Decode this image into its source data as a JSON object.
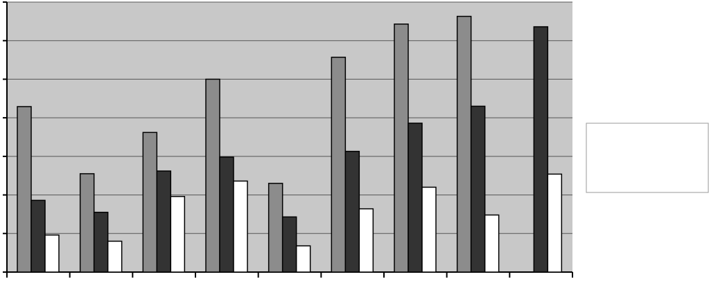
{
  "chart_data": {
    "type": "bar",
    "categories": [
      null,
      null,
      null,
      null,
      null,
      null,
      null,
      null,
      null
    ],
    "series": [
      {
        "color": "#8c8c8c",
        "values": [
          4.29,
          2.55,
          3.62,
          5.0,
          2.3,
          5.57,
          6.43,
          6.63,
          null
        ]
      },
      {
        "color": "#333333",
        "values": [
          1.86,
          1.55,
          2.62,
          2.98,
          1.43,
          3.13,
          3.86,
          4.3,
          6.36
        ]
      },
      {
        "color": "#ffffff",
        "values": [
          0.96,
          0.8,
          1.96,
          2.36,
          0.68,
          1.64,
          2.2,
          1.48,
          2.54
        ]
      }
    ],
    "ylim": [
      0,
      7
    ],
    "yticks": [
      0,
      1,
      2,
      3,
      4,
      5,
      6,
      7
    ],
    "grid": true,
    "background": "#c8c8c8"
  }
}
